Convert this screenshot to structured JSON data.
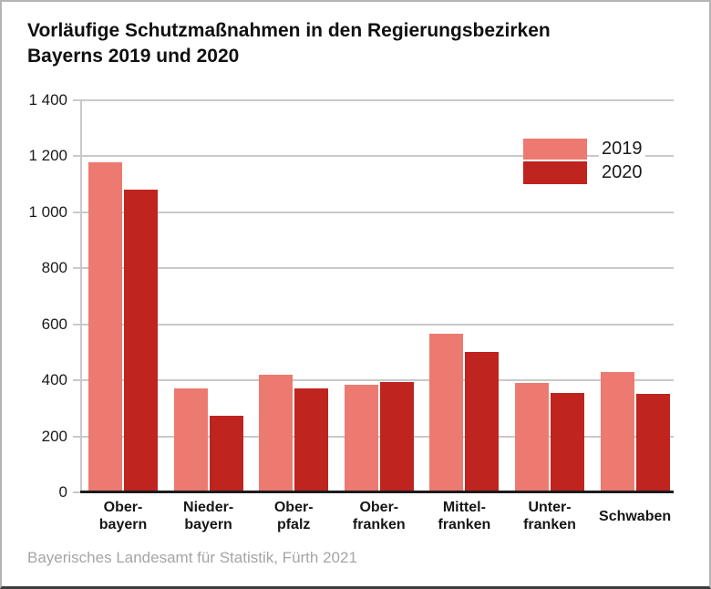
{
  "title": {
    "line1": "Vorläufige Schutzmaßnahmen in den Regierungsbezirken",
    "line2": "Bayerns 2019 und 2020"
  },
  "footer": "Bayerisches Landesamt für Statistik, Fürth 2021",
  "colors": {
    "series_2019": "#ec7a70",
    "series_2020": "#c0241f",
    "gridline": "#c9c9c9",
    "baseline": "#1c1c1c",
    "footer_text": "#a5a5a5"
  },
  "legend": {
    "items": [
      {
        "label": "2019",
        "color": "#ec7a70"
      },
      {
        "label": "2020",
        "color": "#c0241f"
      }
    ]
  },
  "chart_data": {
    "type": "bar",
    "title": "Vorläufige Schutzmaßnahmen in den Regierungsbezirken Bayerns 2019 und 2020",
    "categories": [
      "Oberbayern",
      "Niederbayern",
      "Oberpfalz",
      "Oberfranken",
      "Mittelfranken",
      "Unterfranken",
      "Schwaben"
    ],
    "category_labels": [
      [
        "Ober-",
        "bayern"
      ],
      [
        "Nieder-",
        "bayern"
      ],
      [
        "Ober-",
        "pfalz"
      ],
      [
        "Ober-",
        "franken"
      ],
      [
        "Mittel-",
        "franken"
      ],
      [
        "Unter-",
        "franken"
      ],
      [
        "Schwaben"
      ]
    ],
    "series": [
      {
        "name": "2019",
        "values": [
          1180,
          370,
          420,
          385,
          565,
          390,
          430
        ]
      },
      {
        "name": "2020",
        "values": [
          1080,
          275,
          370,
          395,
          500,
          355,
          350
        ]
      }
    ],
    "xlabel": "",
    "ylabel": "",
    "ylim": [
      0,
      1400
    ],
    "ytick_step": 200,
    "ytick_labels": [
      "0",
      "200",
      "400",
      "600",
      "800",
      "1 000",
      "1 200",
      "1 400"
    ],
    "grid": true,
    "legend_position": "top-right"
  }
}
